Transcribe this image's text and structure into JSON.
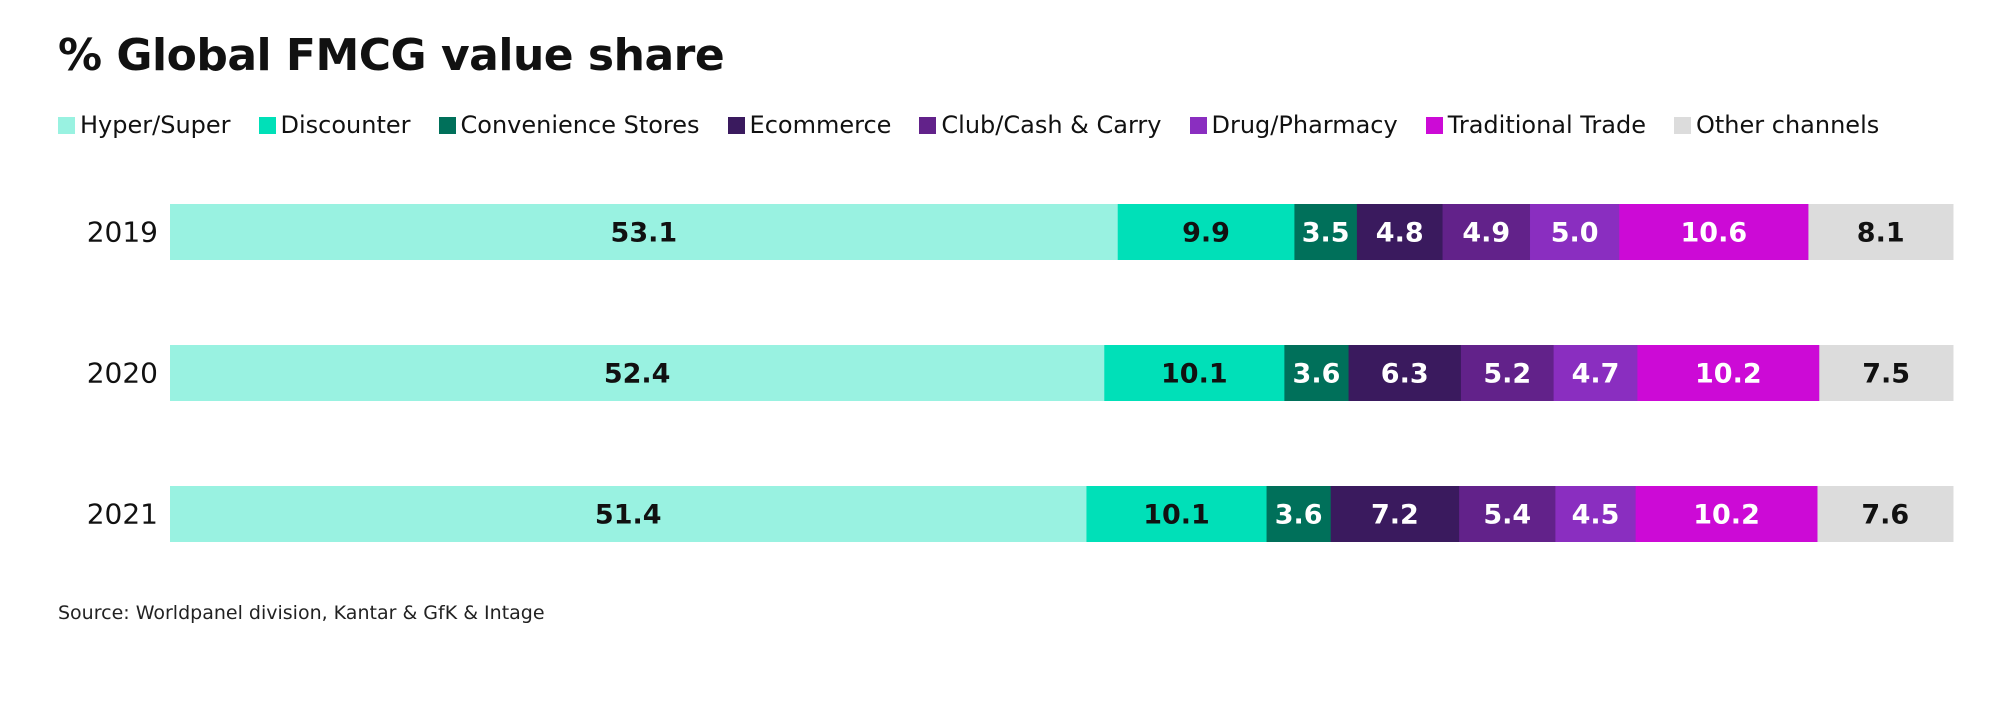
{
  "chart_data": {
    "type": "bar",
    "orientation": "horizontal",
    "stacked": true,
    "title": "% Global FMCG value share",
    "categories": [
      "2019",
      "2020",
      "2021"
    ],
    "series": [
      {
        "name": "Hyper/Super",
        "color": "#99F2E1",
        "label_color": "#111111",
        "values": [
          53.1,
          52.4,
          51.4
        ]
      },
      {
        "name": "Discounter",
        "color": "#00E0B8",
        "label_color": "#111111",
        "values": [
          9.9,
          10.1,
          10.1
        ]
      },
      {
        "name": "Convenience Stores",
        "color": "#00705A",
        "label_color": "#ffffff",
        "values": [
          3.5,
          3.6,
          3.6
        ]
      },
      {
        "name": "Ecommerce",
        "color": "#3A1A5E",
        "label_color": "#ffffff",
        "values": [
          4.8,
          6.3,
          7.2
        ]
      },
      {
        "name": "Club/Cash & Carry",
        "color": "#62228A",
        "label_color": "#ffffff",
        "values": [
          4.9,
          5.2,
          5.4
        ]
      },
      {
        "name": "Drug/Pharmacy",
        "color": "#8A2EC0",
        "label_color": "#ffffff",
        "values": [
          5.0,
          4.7,
          4.5
        ]
      },
      {
        "name": "Traditional Trade",
        "color": "#CC0AD6",
        "label_color": "#ffffff",
        "values": [
          10.6,
          10.2,
          10.2
        ]
      },
      {
        "name": "Other channels",
        "color": "#DCDCDC",
        "label_color": "#111111",
        "values": [
          8.1,
          7.5,
          7.6
        ]
      }
    ],
    "legend_position": "top-left",
    "grid": false
  },
  "source": "Source: Worldpanel division, Kantar & GfK & Intage"
}
